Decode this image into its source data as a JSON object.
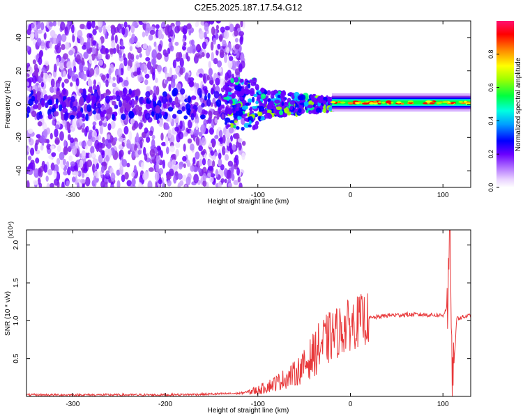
{
  "title": "C2E5.2025.187.17.54.G12",
  "chart_data": [
    {
      "type": "heatmap",
      "name": "spectrogram",
      "xlabel": "Height of straight line (km)",
      "ylabel": "Frequency (Hz)",
      "xlim": [
        -350,
        130
      ],
      "ylim": [
        -50,
        50
      ],
      "xticks": [
        -300,
        -200,
        -100,
        0,
        100
      ],
      "yticks": [
        -40,
        -20,
        0,
        20,
        40
      ],
      "colorbar": {
        "label": "Normalized spectral amplitude",
        "range": [
          0,
          1
        ],
        "ticks": [
          "0.0",
          "0.2",
          "0.4",
          "0.6",
          "0.8"
        ],
        "colors": [
          "#ffffff",
          "#d8b4ff",
          "#8a2be2",
          "#6a00ff",
          "#0000ff",
          "#00bfff",
          "#00ffd0",
          "#00ff40",
          "#a0ff00",
          "#ffff00",
          "#ff8000",
          "#ff0000",
          "#ff1080"
        ]
      },
      "features": [
        {
          "x_range": [
            -350,
            -115
          ],
          "description_level": 0.15
        },
        {
          "x_range": [
            -115,
            -20
          ],
          "description_level": 0.45
        },
        {
          "x_range": [
            -20,
            130
          ],
          "description_level": 0.9
        }
      ]
    },
    {
      "type": "line",
      "name": "snr",
      "xlabel": "Height of straight line (km)",
      "ylabel": "SNR (10 * v/v)",
      "scale_label": "(x10⁴)",
      "xlim": [
        -350,
        130
      ],
      "ylim": [
        0,
        2.2
      ],
      "xticks": [
        -300,
        -200,
        -100,
        0,
        100
      ],
      "yticks": [
        "0.5",
        "1.0",
        "1.5",
        "2.0"
      ],
      "color": "#e8383a",
      "x": [
        -350,
        -300,
        -250,
        -200,
        -150,
        -120,
        -100,
        -80,
        -60,
        -50,
        -40,
        -30,
        -20,
        -10,
        0,
        10,
        20,
        30,
        40,
        60,
        80,
        100,
        105,
        108,
        110,
        115,
        130
      ],
      "y": [
        0.02,
        0.02,
        0.02,
        0.02,
        0.03,
        0.04,
        0.08,
        0.18,
        0.3,
        0.4,
        0.55,
        0.7,
        0.8,
        0.88,
        0.95,
        1.0,
        1.03,
        1.05,
        1.07,
        1.08,
        1.08,
        1.07,
        1.2,
        2.15,
        0.05,
        1.03,
        1.07
      ]
    }
  ]
}
